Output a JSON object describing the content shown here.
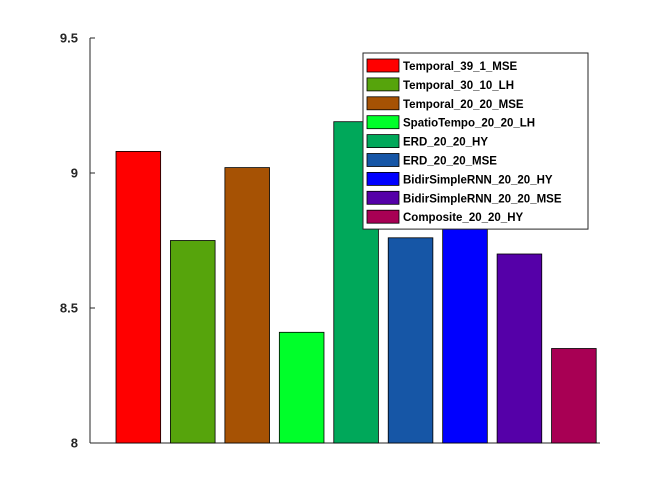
{
  "chart_data": {
    "type": "bar",
    "title": "",
    "xlabel": "",
    "ylabel": "",
    "ylim": [
      8,
      9.5
    ],
    "yticks": [
      "8",
      "8.5",
      "9",
      "9.5"
    ],
    "ytick_values": [
      8,
      8.5,
      9,
      9.5
    ],
    "legend_position": "top-right",
    "grid": false,
    "series": [
      {
        "name": "Temporal_39_1_MSE",
        "value": 9.08,
        "color": "#ff0000"
      },
      {
        "name": "Temporal_30_10_LH",
        "value": 8.75,
        "color": "#56a40c"
      },
      {
        "name": "Temporal_20_20_MSE",
        "value": 9.02,
        "color": "#a65204"
      },
      {
        "name": "SpatioTempo_20_20_LH",
        "value": 8.41,
        "color": "#00ff2a"
      },
      {
        "name": "ERD_20_20_HY",
        "value": 9.19,
        "color": "#00a85a"
      },
      {
        "name": "ERD_20_20_MSE",
        "value": 8.76,
        "color": "#1656a6"
      },
      {
        "name": "BidirSimpleRNN_20_20_HY",
        "value": 8.89,
        "color": "#0000ff"
      },
      {
        "name": "BidirSimpleRNN_20_20_MSE",
        "value": 8.7,
        "color": "#5500a8"
      },
      {
        "name": "Composite_20_20_HY",
        "value": 8.35,
        "color": "#a80054"
      }
    ]
  }
}
